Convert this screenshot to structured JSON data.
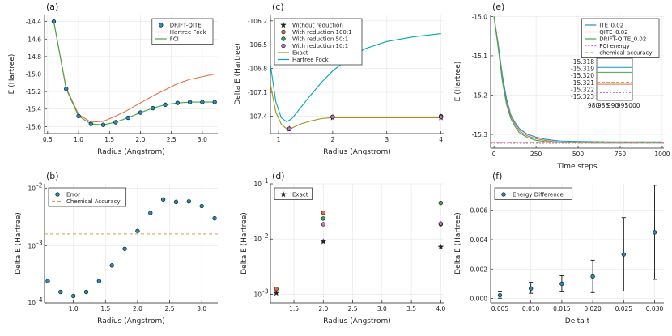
{
  "colors": {
    "blue": "#1f8fc9",
    "orange": "#e26f46",
    "green": "#3ea84a",
    "purple": "#c271d2",
    "olive": "#ac8d18",
    "cyan": "#00a9ad",
    "dashed": "#d4a055",
    "darkgreen": "#2e7d5b",
    "grid": "#e6e6e6"
  },
  "chart_data": [
    {
      "panel": "(a)",
      "type": "line",
      "xlabel": "Radius (Angstrom)",
      "ylabel": "E (Hartree)",
      "xlim": [
        0.45,
        3.25
      ],
      "ylim": [
        -15.68,
        -14.32
      ],
      "xticks": [
        0.5,
        1.0,
        1.5,
        2.0,
        2.5,
        3.0
      ],
      "xticklabels": [
        "0.5",
        "1.0",
        "1.5",
        "2.0",
        "2.5",
        "3.0"
      ],
      "yticks": [
        -14.4,
        -14.6,
        -14.8,
        -15.0,
        -15.2,
        -15.4,
        -15.6
      ],
      "yticklabels": [
        "-14.4",
        "-14.6",
        "-14.8",
        "-15.0",
        "-15.2",
        "-15.4",
        "-15.6"
      ],
      "legend_pos": "top-right",
      "series": [
        {
          "name": "DRIFT-QITE",
          "kind": "markers",
          "color": "blue",
          "x": [
            0.6,
            0.8,
            1.0,
            1.2,
            1.4,
            1.6,
            1.8,
            2.0,
            2.2,
            2.4,
            2.6,
            2.8,
            3.0,
            3.2
          ],
          "y": [
            -14.4,
            -15.17,
            -15.48,
            -15.57,
            -15.58,
            -15.55,
            -15.5,
            -15.44,
            -15.39,
            -15.35,
            -15.33,
            -15.32,
            -15.32,
            -15.32
          ]
        },
        {
          "name": "Hartree Fock",
          "kind": "line",
          "color": "orange",
          "x": [
            0.6,
            0.8,
            1.0,
            1.2,
            1.4,
            1.6,
            1.8,
            2.0,
            2.2,
            2.4,
            2.6,
            2.8,
            3.0,
            3.2
          ],
          "y": [
            -14.4,
            -15.16,
            -15.46,
            -15.55,
            -15.54,
            -15.48,
            -15.41,
            -15.33,
            -15.25,
            -15.18,
            -15.11,
            -15.06,
            -15.03,
            -15.0
          ]
        },
        {
          "name": "FCI",
          "kind": "line",
          "color": "green",
          "x": [
            0.6,
            0.8,
            1.0,
            1.2,
            1.4,
            1.6,
            1.8,
            2.0,
            2.2,
            2.4,
            2.6,
            2.8,
            3.0,
            3.2
          ],
          "y": [
            -14.4,
            -15.17,
            -15.48,
            -15.57,
            -15.58,
            -15.55,
            -15.5,
            -15.44,
            -15.39,
            -15.35,
            -15.33,
            -15.32,
            -15.32,
            -15.32
          ]
        }
      ]
    },
    {
      "panel": "(b)",
      "type": "scatter",
      "xlabel": "Radius (Angstrom)",
      "ylabel": "Delta E (Hartree)",
      "yscale": "log",
      "xlim": [
        0.55,
        3.25
      ],
      "ylim": [
        0.0001,
        0.012
      ],
      "xticks": [
        1.0,
        1.5,
        2.0,
        2.5,
        3.0
      ],
      "xticklabels": [
        "1.0",
        "1.5",
        "2.0",
        "2.5",
        "3.0"
      ],
      "yticks": [
        0.0001,
        0.001,
        0.01
      ],
      "yticklabels": [
        "10",
        "10",
        "10"
      ],
      "yticksup": [
        "-4",
        "-3",
        "-2"
      ],
      "legend_pos": "top-left",
      "series": [
        {
          "name": "Error",
          "kind": "markers",
          "color": "blue",
          "x": [
            0.6,
            0.8,
            1.0,
            1.2,
            1.4,
            1.6,
            1.8,
            2.0,
            2.2,
            2.4,
            2.6,
            2.8,
            3.0,
            3.2
          ],
          "y": [
            0.00024,
            0.000155,
            0.000132,
            0.000155,
            0.00024,
            0.00045,
            0.00088,
            0.0018,
            0.0037,
            0.0064,
            0.0058,
            0.0059,
            0.0049,
            0.003
          ]
        },
        {
          "name": "Chemical Accuracy",
          "kind": "hline",
          "color": "dashed",
          "y": 0.0016
        }
      ]
    },
    {
      "panel": "(c)",
      "type": "line",
      "xlabel": "Radius (Angstrom)",
      "ylabel": "Delta E (Hartree)",
      "xlim": [
        0.85,
        4.05
      ],
      "ylim": [
        -107.62,
        -106.12
      ],
      "xticks": [
        1,
        2,
        3,
        4
      ],
      "xticklabels": [
        "1",
        "2",
        "3",
        "4"
      ],
      "yticks": [
        -106.2,
        -106.5,
        -106.8,
        -107.1,
        -107.4
      ],
      "yticklabels": [
        "-106.2",
        "-106.5",
        "-106.8",
        "-107.1",
        "-107.4"
      ],
      "legend_pos": "top-left",
      "series": [
        {
          "name": "Without reduction",
          "kind": "star",
          "color": "#222222",
          "x": [
            1.2,
            2.0,
            4.0
          ],
          "y": [
            -107.56,
            -107.42,
            -107.42
          ]
        },
        {
          "name": "With reduction 100:1",
          "kind": "markers",
          "color": "orange",
          "x": [
            1.2,
            2.0,
            4.0
          ],
          "y": [
            -107.56,
            -107.41,
            -107.41
          ]
        },
        {
          "name": "With reduction 50:1",
          "kind": "markers",
          "color": "green",
          "x": [
            1.2,
            2.0,
            4.0
          ],
          "y": [
            -107.56,
            -107.41,
            -107.4
          ]
        },
        {
          "name": "With reduction 10:1",
          "kind": "markers",
          "color": "purple",
          "x": [
            1.2,
            2.0,
            4.0
          ],
          "y": [
            -107.56,
            -107.41,
            -107.41
          ]
        },
        {
          "name": "Exact",
          "kind": "line",
          "color": "olive",
          "x": [
            0.85,
            0.95,
            1.05,
            1.15,
            1.25,
            1.4,
            1.6,
            1.8,
            2.0,
            2.5,
            3.0,
            3.5,
            4.0
          ],
          "y": [
            -107.0,
            -107.35,
            -107.5,
            -107.56,
            -107.55,
            -107.5,
            -107.46,
            -107.43,
            -107.42,
            -107.42,
            -107.42,
            -107.42,
            -107.42
          ]
        },
        {
          "name": "Hartree Fock",
          "kind": "line",
          "color": "cyan",
          "x": [
            0.85,
            0.95,
            1.05,
            1.15,
            1.25,
            1.4,
            1.6,
            1.8,
            2.0,
            2.3,
            2.6,
            3.0,
            3.5,
            4.0
          ],
          "y": [
            -106.75,
            -107.22,
            -107.42,
            -107.47,
            -107.43,
            -107.3,
            -107.13,
            -106.97,
            -106.83,
            -106.67,
            -106.55,
            -106.46,
            -106.4,
            -106.36
          ]
        }
      ]
    },
    {
      "panel": "(d)",
      "type": "scatter",
      "xlabel": "Radius (Angstrom)",
      "ylabel": "Delta E (Hartree)",
      "yscale": "log",
      "xlim": [
        1.1,
        4.05
      ],
      "ylim": [
        0.0007,
        0.1
      ],
      "xticks": [
        1.5,
        2.0,
        2.5,
        3.0,
        3.5,
        4.0
      ],
      "xticklabels": [
        "1.5",
        "2.0",
        "2.5",
        "3.0",
        "3.5",
        "4.0"
      ],
      "yticks": [
        0.001,
        0.01,
        0.1
      ],
      "yticklabels": [
        "10",
        "10",
        "10"
      ],
      "yticksup": [
        "-3",
        "-2",
        "-1"
      ],
      "legend_pos": "top-left",
      "series": [
        {
          "name": "Exact",
          "kind": "star",
          "color": "#222222",
          "x": [
            1.2,
            2.0,
            4.0
          ],
          "y": [
            0.00105,
            0.009,
            0.0072
          ]
        },
        {
          "name": "With reduction 100:1",
          "kind": "markers",
          "color": "orange",
          "legend": false,
          "x": [
            1.2,
            2.0,
            4.0
          ],
          "y": [
            0.00125,
            0.03,
            0.0185
          ]
        },
        {
          "name": "With reduction 50:1",
          "kind": "markers",
          "color": "green",
          "legend": false,
          "x": [
            2.0,
            4.0
          ],
          "y": [
            0.0235,
            0.045
          ]
        },
        {
          "name": "With reduction 10:1",
          "kind": "markers",
          "color": "purple",
          "legend": false,
          "x": [
            2.0,
            4.0
          ],
          "y": [
            0.0185,
            0.019
          ]
        },
        {
          "name": "Chemical Accuracy",
          "kind": "hline",
          "color": "dashed",
          "legend": false,
          "y": 0.0016
        }
      ]
    },
    {
      "panel": "(e)",
      "type": "line",
      "xlabel": "Time steps",
      "ylabel": "E (Hartree)",
      "xlim": [
        -20,
        1010
      ],
      "ylim": [
        -15.335,
        -14.995
      ],
      "xticks": [
        0,
        250,
        500,
        750,
        1000
      ],
      "xticklabels": [
        "0",
        "250",
        "500",
        "750",
        "1000"
      ],
      "yticks": [
        -15.0,
        -15.1,
        -15.2,
        -15.3
      ],
      "yticklabels": [
        "-15.0",
        "-15.1",
        "-15.2",
        "-15.3"
      ],
      "legend_pos": "top-right",
      "series": [
        {
          "name": "ITE_0.02",
          "kind": "line",
          "color": "blue",
          "x": [
            0,
            25,
            50,
            75,
            100,
            125,
            150,
            175,
            200,
            250,
            300,
            350,
            400,
            500,
            600,
            700,
            800,
            900,
            1000
          ],
          "y": [
            -15.0,
            -15.07,
            -15.15,
            -15.21,
            -15.25,
            -15.27,
            -15.285,
            -15.293,
            -15.3,
            -15.307,
            -15.312,
            -15.315,
            -15.317,
            -15.318,
            -15.3185,
            -15.319,
            -15.319,
            -15.319,
            -15.319
          ]
        },
        {
          "name": "QITE_0.02",
          "kind": "line",
          "color": "orange",
          "x": [
            0,
            25,
            50,
            75,
            100,
            125,
            150,
            175,
            200,
            250,
            300,
            350,
            400,
            500,
            600,
            700,
            800,
            900,
            1000
          ],
          "y": [
            -15.0,
            -15.075,
            -15.16,
            -15.22,
            -15.255,
            -15.275,
            -15.29,
            -15.298,
            -15.304,
            -15.311,
            -15.315,
            -15.318,
            -15.32,
            -15.3205,
            -15.321,
            -15.321,
            -15.321,
            -15.321,
            -15.321
          ]
        },
        {
          "name": "DRIFT-QITE_0.02",
          "kind": "line",
          "color": "green",
          "x": [
            0,
            25,
            50,
            75,
            100,
            125,
            150,
            175,
            200,
            250,
            300,
            350,
            400,
            500,
            600,
            700,
            800,
            900,
            1000
          ],
          "y": [
            -15.0,
            -15.08,
            -15.165,
            -15.225,
            -15.26,
            -15.28,
            -15.295,
            -15.302,
            -15.308,
            -15.315,
            -15.318,
            -15.32,
            -15.321,
            -15.3215,
            -15.322,
            -15.322,
            -15.322,
            -15.322,
            -15.322
          ]
        },
        {
          "name": "FCI energy",
          "kind": "hline",
          "color": "purple",
          "y": -15.3225
        },
        {
          "name": "chemical accuracy",
          "kind": "hline",
          "color": "dashed",
          "y": -15.3209
        }
      ],
      "inset": {
        "xlim": [
          980,
          1000
        ],
        "ylim": [
          -15.3235,
          -15.3175
        ],
        "xticks": [
          980,
          985,
          990,
          995,
          1000
        ],
        "xticklabels": [
          "980",
          "985",
          "990",
          "995",
          "1000"
        ],
        "yticks": [
          -15.318,
          -15.319,
          -15.32,
          -15.321,
          -15.322,
          -15.323
        ],
        "yticklabels": [
          "-15.318",
          "-15.319",
          "-15.320",
          "-15.321",
          "-15.322",
          "-15.323"
        ],
        "series": [
          {
            "color": "blue",
            "y": -15.3188
          },
          {
            "color": "orange",
            "y": -15.3212
          },
          {
            "color": "green",
            "y": -15.3195
          },
          {
            "color": "purple",
            "y": -15.3224
          },
          {
            "color": "dashed",
            "y": -15.3209
          }
        ]
      }
    },
    {
      "panel": "(f)",
      "type": "scatter",
      "xlabel": "Delta t",
      "ylabel": "Delta E (Hartree)",
      "xlim": [
        0.0035,
        0.0315
      ],
      "ylim": [
        -0.0003,
        0.0078
      ],
      "xticks": [
        0.005,
        0.01,
        0.015,
        0.02,
        0.025,
        0.03
      ],
      "xticklabels": [
        "0.005",
        "0.010",
        "0.015",
        "0.020",
        "0.025",
        "0.030"
      ],
      "yticks": [
        0.0,
        0.002,
        0.004,
        0.006
      ],
      "yticklabels": [
        "0.000",
        "0.002",
        "0.004",
        "0.006"
      ],
      "legend_pos": "top-left",
      "series": [
        {
          "name": "Energy Difference",
          "kind": "errorbar",
          "color": "blue",
          "x": [
            0.005,
            0.01,
            0.015,
            0.02,
            0.025,
            0.03
          ],
          "y": [
            0.00022,
            0.00068,
            0.001,
            0.0015,
            0.003,
            0.0045
          ],
          "ylo": [
            2e-05,
            0.00035,
            0.00045,
            0.0004,
            0.0005,
            0.0013
          ],
          "yhi": [
            0.00045,
            0.0011,
            0.00155,
            0.0026,
            0.0055,
            0.0077
          ]
        }
      ]
    }
  ]
}
